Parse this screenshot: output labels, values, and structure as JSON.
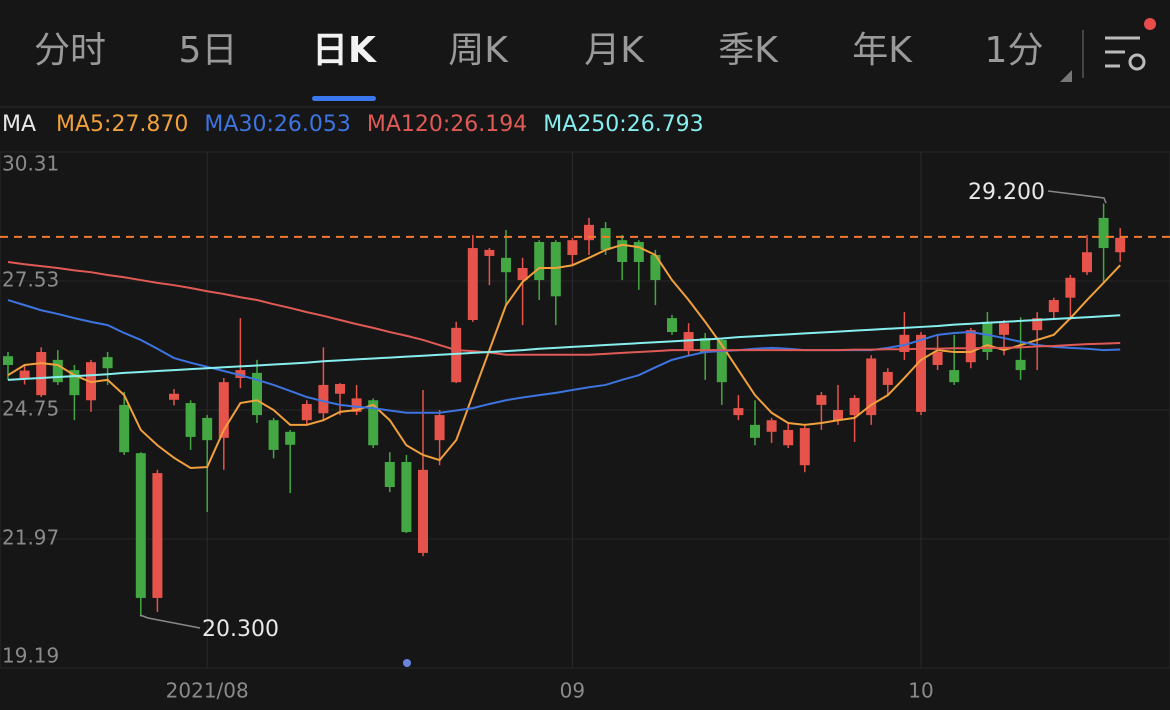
{
  "tabs": [
    "分时",
    "5日",
    "日K",
    "周K",
    "月K",
    "季K",
    "年K",
    "1分"
  ],
  "active_tab": 2,
  "chart_data": {
    "type": "candlestick",
    "legend_title": "MA",
    "up_color": "#e5534b",
    "down_color": "#43a843",
    "open": [
      25.91,
      25.44,
      25.07,
      25.83,
      25.61,
      24.96,
      25.89,
      24.86,
      23.82,
      20.7,
      24.97,
      24.9,
      24.58,
      24.15,
      25.44,
      25.55,
      24.53,
      24.28,
      24.53,
      24.68,
      25.1,
      24.71,
      24.96,
      23.63,
      23.63,
      21.67,
      24.1,
      25.35,
      26.69,
      28.07,
      28.03,
      27.55,
      28.37,
      28.37,
      28.09,
      28.41,
      28.67,
      28.41,
      28.37,
      28.09,
      26.73,
      26.04,
      26.3,
      26.26,
      24.64,
      24.43,
      24.28,
      23.99,
      23.56,
      24.86,
      24.53,
      24.64,
      24.64,
      25.29,
      26.0,
      24.71,
      25.72,
      25.61,
      25.78,
      26.65,
      26.37,
      25.83,
      26.47,
      26.86,
      27.17,
      27.72,
      28.89,
      28.15
    ],
    "high": [
      26.0,
      25.7,
      26.1,
      26.04,
      25.72,
      25.83,
      26.0,
      25.14,
      23.84,
      23.46,
      25.2,
      24.96,
      24.64,
      25.44,
      26.73,
      25.83,
      24.58,
      24.32,
      24.96,
      26.1,
      25.33,
      25.29,
      25.0,
      23.84,
      23.78,
      25.18,
      24.75,
      26.65,
      28.52,
      28.24,
      28.63,
      28.03,
      28.41,
      28.41,
      28.46,
      28.89,
      28.8,
      28.52,
      28.41,
      28.2,
      26.8,
      26.62,
      26.41,
      26.3,
      25.07,
      24.96,
      24.58,
      24.47,
      24.41,
      25.14,
      25.29,
      25.07,
      25.93,
      25.65,
      26.86,
      26.43,
      26.37,
      26.37,
      26.52,
      26.86,
      26.69,
      26.75,
      26.86,
      27.17,
      27.66,
      28.52,
      29.2,
      28.67
    ],
    "low": [
      25.4,
      25.3,
      25.03,
      25.29,
      24.53,
      24.71,
      25.29,
      23.78,
      20.3,
      20.4,
      24.85,
      23.89,
      22.55,
      23.46,
      25.22,
      24.47,
      23.71,
      22.96,
      24.43,
      24.53,
      24.64,
      24.64,
      23.93,
      22.98,
      22.1,
      21.6,
      23.56,
      25.33,
      26.65,
      27.44,
      27.01,
      26.58,
      27.12,
      26.58,
      27.87,
      28.09,
      28.09,
      27.55,
      27.34,
      27.01,
      26.37,
      25.93,
      25.4,
      24.86,
      24.53,
      23.99,
      24.04,
      23.93,
      23.41,
      24.32,
      24.43,
      24.06,
      24.43,
      25.07,
      25.83,
      24.64,
      25.61,
      25.29,
      25.65,
      25.83,
      25.93,
      25.4,
      25.61,
      26.73,
      26.69,
      27.66,
      27.5,
      27.94
    ],
    "close": [
      25.72,
      25.6,
      26.0,
      25.35,
      25.07,
      25.78,
      25.65,
      23.84,
      20.7,
      23.39,
      25.1,
      24.17,
      24.1,
      25.35,
      25.61,
      24.64,
      23.89,
      24.0,
      24.88,
      25.29,
      25.31,
      25.0,
      23.99,
      23.09,
      22.12,
      23.46,
      24.64,
      26.52,
      28.24,
      28.2,
      27.72,
      27.81,
      27.55,
      27.2,
      28.41,
      28.74,
      28.2,
      27.94,
      27.94,
      27.55,
      26.43,
      26.43,
      26.0,
      25.35,
      24.79,
      24.15,
      24.53,
      24.32,
      24.36,
      25.07,
      24.75,
      25.01,
      25.86,
      25.57,
      26.37,
      26.37,
      26.0,
      25.35,
      26.47,
      26.0,
      26.62,
      25.61,
      26.73,
      27.12,
      27.6,
      28.15,
      28.24,
      28.46
    ],
    "series": [
      {
        "name": "MA5:27.870",
        "color": "#f0a03c",
        "values": [
          25.5,
          25.72,
          25.76,
          25.72,
          25.5,
          25.35,
          25.4,
          25.07,
          24.32,
          23.99,
          23.72,
          23.5,
          23.52,
          24.32,
          24.9,
          24.96,
          24.75,
          24.43,
          24.43,
          24.53,
          24.71,
          24.75,
          24.86,
          24.53,
          23.99,
          23.78,
          23.67,
          24.1,
          25.07,
          26.04,
          27.01,
          27.51,
          27.81,
          27.81,
          27.87,
          28.03,
          28.2,
          28.31,
          28.26,
          28.09,
          27.55,
          27.12,
          26.65,
          26.15,
          25.61,
          25.07,
          24.69,
          24.47,
          24.43,
          24.47,
          24.53,
          24.58,
          24.86,
          25.07,
          25.44,
          25.83,
          26.04,
          26.0,
          26.0,
          26.15,
          26.04,
          26.15,
          26.26,
          26.37,
          26.73,
          27.12,
          27.49,
          27.87
        ]
      },
      {
        "name": "MA30:26.053",
        "color": "#3d74e0",
        "values": [
          27.12,
          27.01,
          26.9,
          26.82,
          26.73,
          26.65,
          26.58,
          26.41,
          26.26,
          26.07,
          25.87,
          25.77,
          25.68,
          25.59,
          25.5,
          25.4,
          25.29,
          25.16,
          25.03,
          24.94,
          24.86,
          24.82,
          24.79,
          24.74,
          24.69,
          24.69,
          24.69,
          24.74,
          24.79,
          24.88,
          24.96,
          25.02,
          25.07,
          25.12,
          25.18,
          25.24,
          25.29,
          25.4,
          25.5,
          25.67,
          25.83,
          25.92,
          26.0,
          26.02,
          26.04,
          26.07,
          26.09,
          26.07,
          26.04,
          26.04,
          26.04,
          26.04,
          26.04,
          26.09,
          26.15,
          26.26,
          26.37,
          26.41,
          26.43,
          26.37,
          26.3,
          26.22,
          26.15,
          26.11,
          26.09,
          26.07,
          26.04,
          26.053
        ]
      },
      {
        "name": "MA120:26.194",
        "color": "#e05a55",
        "values": [
          27.94,
          27.89,
          27.85,
          27.81,
          27.76,
          27.72,
          27.66,
          27.61,
          27.55,
          27.49,
          27.44,
          27.38,
          27.31,
          27.25,
          27.18,
          27.12,
          27.03,
          26.95,
          26.86,
          26.78,
          26.69,
          26.6,
          26.52,
          26.43,
          26.35,
          26.26,
          26.15,
          26.04,
          26.02,
          25.99,
          25.94,
          25.94,
          25.94,
          25.94,
          25.94,
          25.94,
          25.96,
          25.98,
          26.0,
          26.02,
          26.04,
          26.04,
          26.04,
          26.04,
          26.04,
          26.04,
          26.04,
          26.04,
          26.04,
          26.04,
          26.04,
          26.05,
          26.05,
          26.06,
          26.06,
          26.07,
          26.07,
          26.08,
          26.08,
          26.09,
          26.09,
          26.1,
          26.12,
          26.13,
          26.15,
          26.17,
          26.18,
          26.194
        ]
      },
      {
        "name": "MA250:26.793",
        "color": "#86eeee",
        "values": [
          25.4,
          25.42,
          25.44,
          25.46,
          25.48,
          25.5,
          25.52,
          25.55,
          25.57,
          25.59,
          25.61,
          25.63,
          25.65,
          25.67,
          25.69,
          25.71,
          25.73,
          25.75,
          25.77,
          25.8,
          25.82,
          25.84,
          25.86,
          25.88,
          25.9,
          25.92,
          25.94,
          25.96,
          25.98,
          26.0,
          26.02,
          26.04,
          26.07,
          26.09,
          26.11,
          26.13,
          26.15,
          26.17,
          26.19,
          26.21,
          26.23,
          26.25,
          26.27,
          26.29,
          26.32,
          26.34,
          26.36,
          26.38,
          26.4,
          26.42,
          26.44,
          26.46,
          26.48,
          26.5,
          26.52,
          26.54,
          26.56,
          26.59,
          26.61,
          26.63,
          26.65,
          26.67,
          26.69,
          26.71,
          26.73,
          26.75,
          26.77,
          26.793
        ]
      }
    ],
    "price_line": 28.48,
    "price_line_color": "#f07a30",
    "max_label": "29.200",
    "min_label": "20.300",
    "ylim": [
      19.19,
      30.31
    ],
    "yticks": [
      30.31,
      27.53,
      24.75,
      21.97,
      19.19
    ],
    "xticks": [
      {
        "value": 12,
        "label": "2021/08"
      },
      {
        "value": 34,
        "label": "09"
      },
      {
        "value": 55,
        "label": "10"
      }
    ],
    "grid": true
  }
}
